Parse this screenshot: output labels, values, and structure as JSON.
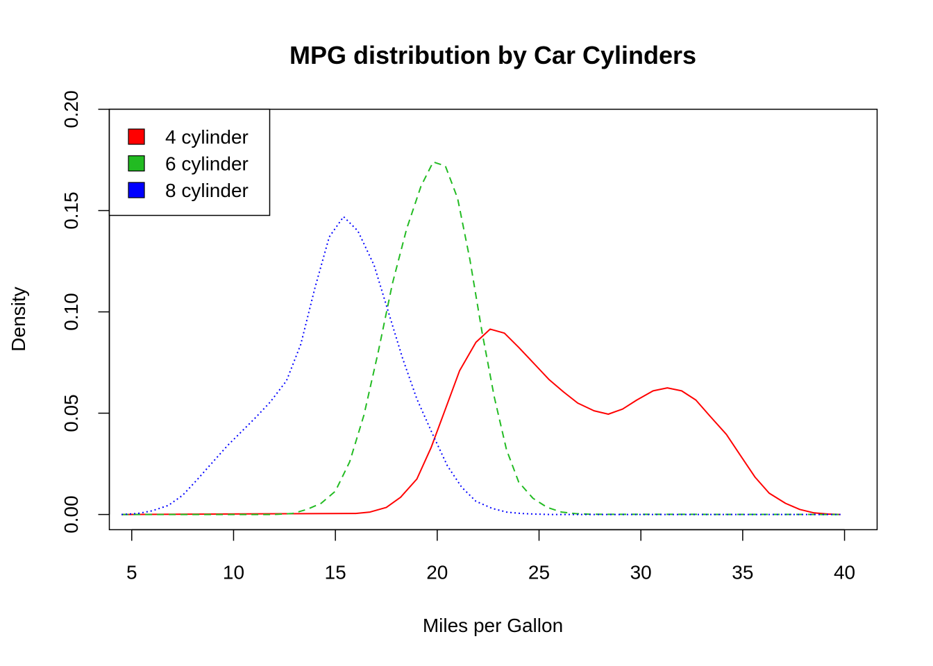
{
  "chart_data": {
    "type": "line",
    "title": "MPG distribution by Car Cylinders",
    "xlabel": "Miles per Gallon",
    "ylabel": "Density",
    "xlim": [
      3.9,
      41.6
    ],
    "ylim": [
      -0.0075,
      0.2
    ],
    "x_ticks": [
      5,
      10,
      15,
      20,
      25,
      30,
      35,
      40
    ],
    "y_ticks": [
      0.0,
      0.05,
      0.1,
      0.15,
      0.2
    ],
    "y_tick_labels": [
      "0.00",
      "0.05",
      "0.10",
      "0.15",
      "0.20"
    ],
    "grid": false,
    "legend_position": "top-left",
    "series": [
      {
        "name": "4 cylinder",
        "color": "#FF0000",
        "dash": "solid",
        "x": [
          4.5,
          16.0,
          16.7,
          17.5,
          18.2,
          19.0,
          19.7,
          20.4,
          21.1,
          21.9,
          22.6,
          23.3,
          24.0,
          24.8,
          25.5,
          26.2,
          26.9,
          27.7,
          28.4,
          29.1,
          29.8,
          30.6,
          31.3,
          32.0,
          32.7,
          33.4,
          34.2,
          34.9,
          35.6,
          36.3,
          37.1,
          37.8,
          38.5,
          39.2,
          39.8
        ],
        "y": [
          0.0,
          0.0005,
          0.0012,
          0.0035,
          0.0085,
          0.0175,
          0.033,
          0.052,
          0.071,
          0.085,
          0.0915,
          0.0895,
          0.0825,
          0.074,
          0.0665,
          0.0605,
          0.055,
          0.0512,
          0.0495,
          0.052,
          0.0565,
          0.061,
          0.0625,
          0.061,
          0.0565,
          0.0485,
          0.0395,
          0.029,
          0.0185,
          0.0105,
          0.0055,
          0.0025,
          0.0008,
          0.0002,
          0.0
        ]
      },
      {
        "name": "6 cylinder",
        "color": "#22BB22",
        "dash": "dashed",
        "x": [
          4.5,
          12.0,
          12.9,
          13.6,
          14.3,
          15.0,
          15.7,
          16.4,
          17.1,
          17.8,
          18.5,
          19.2,
          19.8,
          20.4,
          21.0,
          21.6,
          22.2,
          22.8,
          23.4,
          24.0,
          24.7,
          25.4,
          26.1,
          26.8,
          27.5,
          39.8
        ],
        "y": [
          0.0,
          0.0,
          0.0005,
          0.0025,
          0.0055,
          0.0115,
          0.026,
          0.049,
          0.08,
          0.114,
          0.141,
          0.162,
          0.174,
          0.172,
          0.156,
          0.126,
          0.09,
          0.058,
          0.032,
          0.016,
          0.008,
          0.0035,
          0.0012,
          0.0004,
          0.0001,
          0.0
        ]
      },
      {
        "name": "8 cylinder",
        "color": "#0000FF",
        "dash": "dotted",
        "x": [
          4.5,
          5.3,
          6.0,
          6.8,
          7.5,
          8.2,
          8.9,
          9.7,
          10.4,
          11.1,
          11.8,
          12.6,
          13.3,
          14.0,
          14.7,
          15.4,
          16.1,
          16.9,
          17.6,
          18.3,
          19.0,
          19.8,
          20.5,
          21.2,
          21.9,
          22.7,
          23.4,
          24.1,
          24.8,
          25.5,
          39.8
        ],
        "y": [
          0.0,
          0.0005,
          0.0018,
          0.0045,
          0.0095,
          0.017,
          0.025,
          0.034,
          0.041,
          0.048,
          0.0555,
          0.066,
          0.084,
          0.112,
          0.137,
          0.147,
          0.14,
          0.123,
          0.1,
          0.077,
          0.057,
          0.039,
          0.024,
          0.0135,
          0.0065,
          0.003,
          0.0012,
          0.0005,
          0.0002,
          0.0,
          0.0
        ]
      }
    ]
  }
}
